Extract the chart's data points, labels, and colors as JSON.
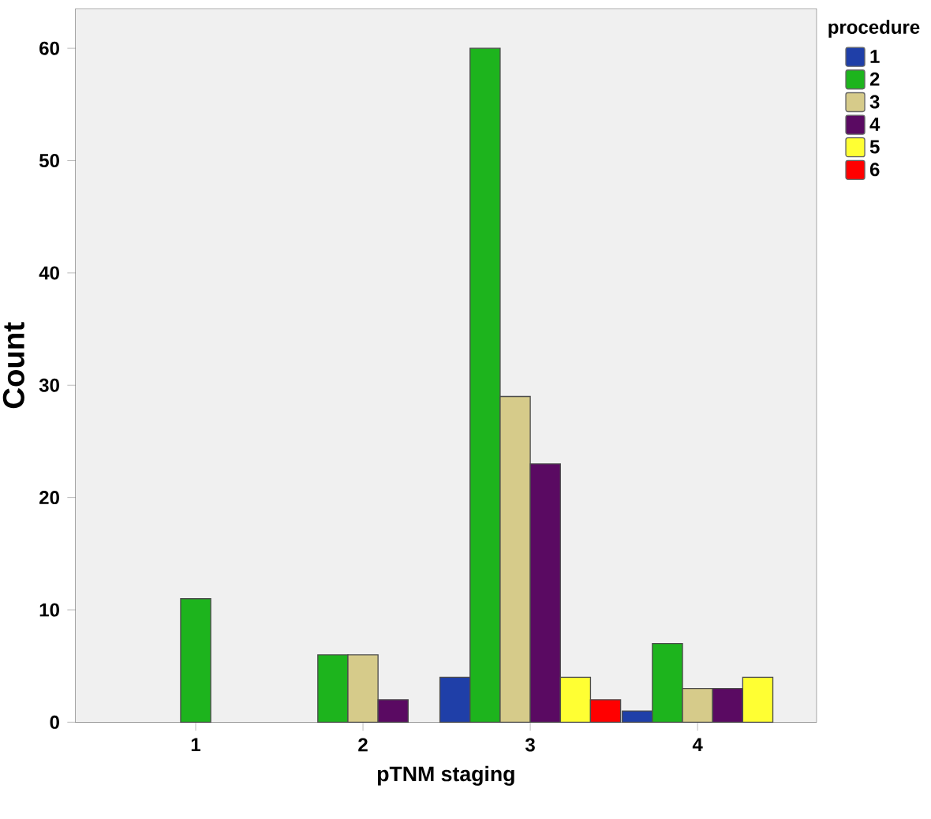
{
  "chart_data": {
    "type": "bar",
    "xlabel": "pTNM staging",
    "ylabel": "Count",
    "legend_title": "procedure",
    "categories": [
      "1",
      "2",
      "3",
      "4"
    ],
    "series": [
      {
        "name": "1",
        "color": "#1f3fa8",
        "values": [
          null,
          null,
          4,
          1
        ]
      },
      {
        "name": "2",
        "color": "#1db41d",
        "values": [
          11,
          6,
          60,
          7
        ]
      },
      {
        "name": "3",
        "color": "#d6cb8a",
        "values": [
          null,
          6,
          29,
          3
        ]
      },
      {
        "name": "4",
        "color": "#5a0a62",
        "values": [
          null,
          2,
          23,
          3
        ]
      },
      {
        "name": "5",
        "color": "#ffff33",
        "values": [
          null,
          null,
          4,
          4
        ]
      },
      {
        "name": "6",
        "color": "#ff0000",
        "values": [
          null,
          null,
          2,
          null
        ]
      }
    ],
    "ylim": [
      0,
      63.5
    ],
    "yticks": [
      0,
      10,
      20,
      30,
      40,
      50,
      60
    ],
    "legend": "top right",
    "grid": false
  }
}
